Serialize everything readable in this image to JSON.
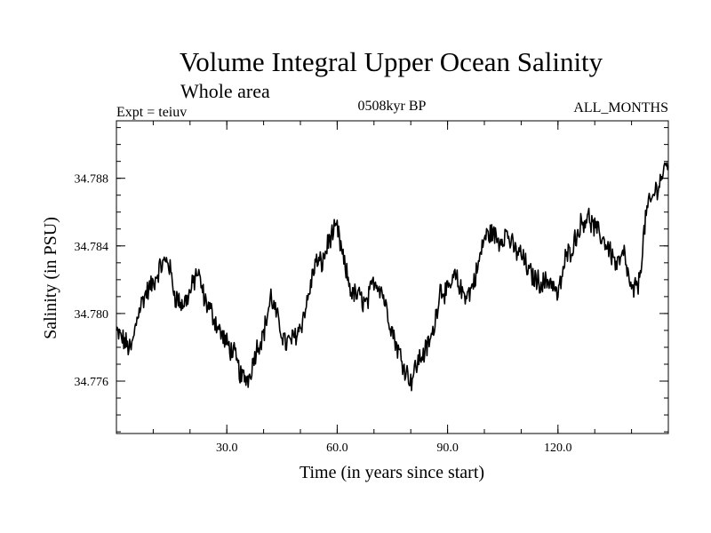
{
  "chart_data": {
    "type": "line",
    "title": "Volume Integral Upper Ocean Salinity",
    "subtitle": "Whole area",
    "experiment_label": "Expt = teiuv",
    "period_label": "0508kyr BP",
    "months_label": "ALL_MONTHS",
    "xlabel": "Time (in years since start)",
    "ylabel": "Salinity (in PSU)",
    "xlim": [
      0,
      150
    ],
    "ylim": [
      34.7729,
      34.7914
    ],
    "x_ticks": [
      30,
      60,
      90,
      120
    ],
    "x_tick_labels": [
      "30.0",
      "60.0",
      "90.0",
      "120.0"
    ],
    "x_minor_step": 10,
    "y_ticks": [
      34.776,
      34.78,
      34.784,
      34.788
    ],
    "y_tick_labels": [
      "34.776",
      "34.780",
      "34.784",
      "34.788"
    ],
    "y_minor_step": 0.001,
    "grid": false,
    "noise_amplitude": 0.0006,
    "series": [
      {
        "name": "salinity",
        "sample_step_years": 0.2,
        "x": [
          0,
          2,
          4,
          6,
          8,
          10,
          12,
          14,
          16,
          18,
          20,
          22,
          24,
          26,
          28,
          30,
          32,
          34,
          36,
          38,
          40,
          42,
          44,
          46,
          48,
          50,
          52,
          54,
          56,
          58,
          60,
          62,
          64,
          66,
          68,
          70,
          72,
          74,
          76,
          78,
          80,
          82,
          84,
          86,
          88,
          90,
          92,
          94,
          96,
          98,
          100,
          102,
          104,
          106,
          108,
          110,
          112,
          114,
          116,
          118,
          120,
          122,
          124,
          126,
          128,
          130,
          132,
          134,
          136,
          138,
          140,
          142,
          144,
          146,
          148,
          150
        ],
        "values": [
          34.7789,
          34.7784,
          34.7778,
          34.7802,
          34.7812,
          34.7818,
          34.7828,
          34.7832,
          34.781,
          34.7805,
          34.7812,
          34.7825,
          34.7808,
          34.78,
          34.779,
          34.7782,
          34.7776,
          34.7762,
          34.7762,
          34.7779,
          34.7788,
          34.781,
          34.7795,
          34.7782,
          34.7785,
          34.7792,
          34.7808,
          34.783,
          34.783,
          34.7845,
          34.785,
          34.7828,
          34.7812,
          34.781,
          34.7805,
          34.782,
          34.7815,
          34.7798,
          34.7782,
          34.777,
          34.776,
          34.7772,
          34.7778,
          34.7788,
          34.7815,
          34.7812,
          34.7822,
          34.7812,
          34.7812,
          34.7825,
          34.7845,
          34.7848,
          34.7843,
          34.7848,
          34.7838,
          34.7835,
          34.7825,
          34.782,
          34.7818,
          34.782,
          34.781,
          34.7832,
          34.784,
          34.7852,
          34.7858,
          34.785,
          34.7845,
          34.7838,
          34.7828,
          34.7835,
          34.7812,
          34.7818,
          34.786,
          34.787,
          34.788,
          34.789
        ]
      }
    ]
  }
}
